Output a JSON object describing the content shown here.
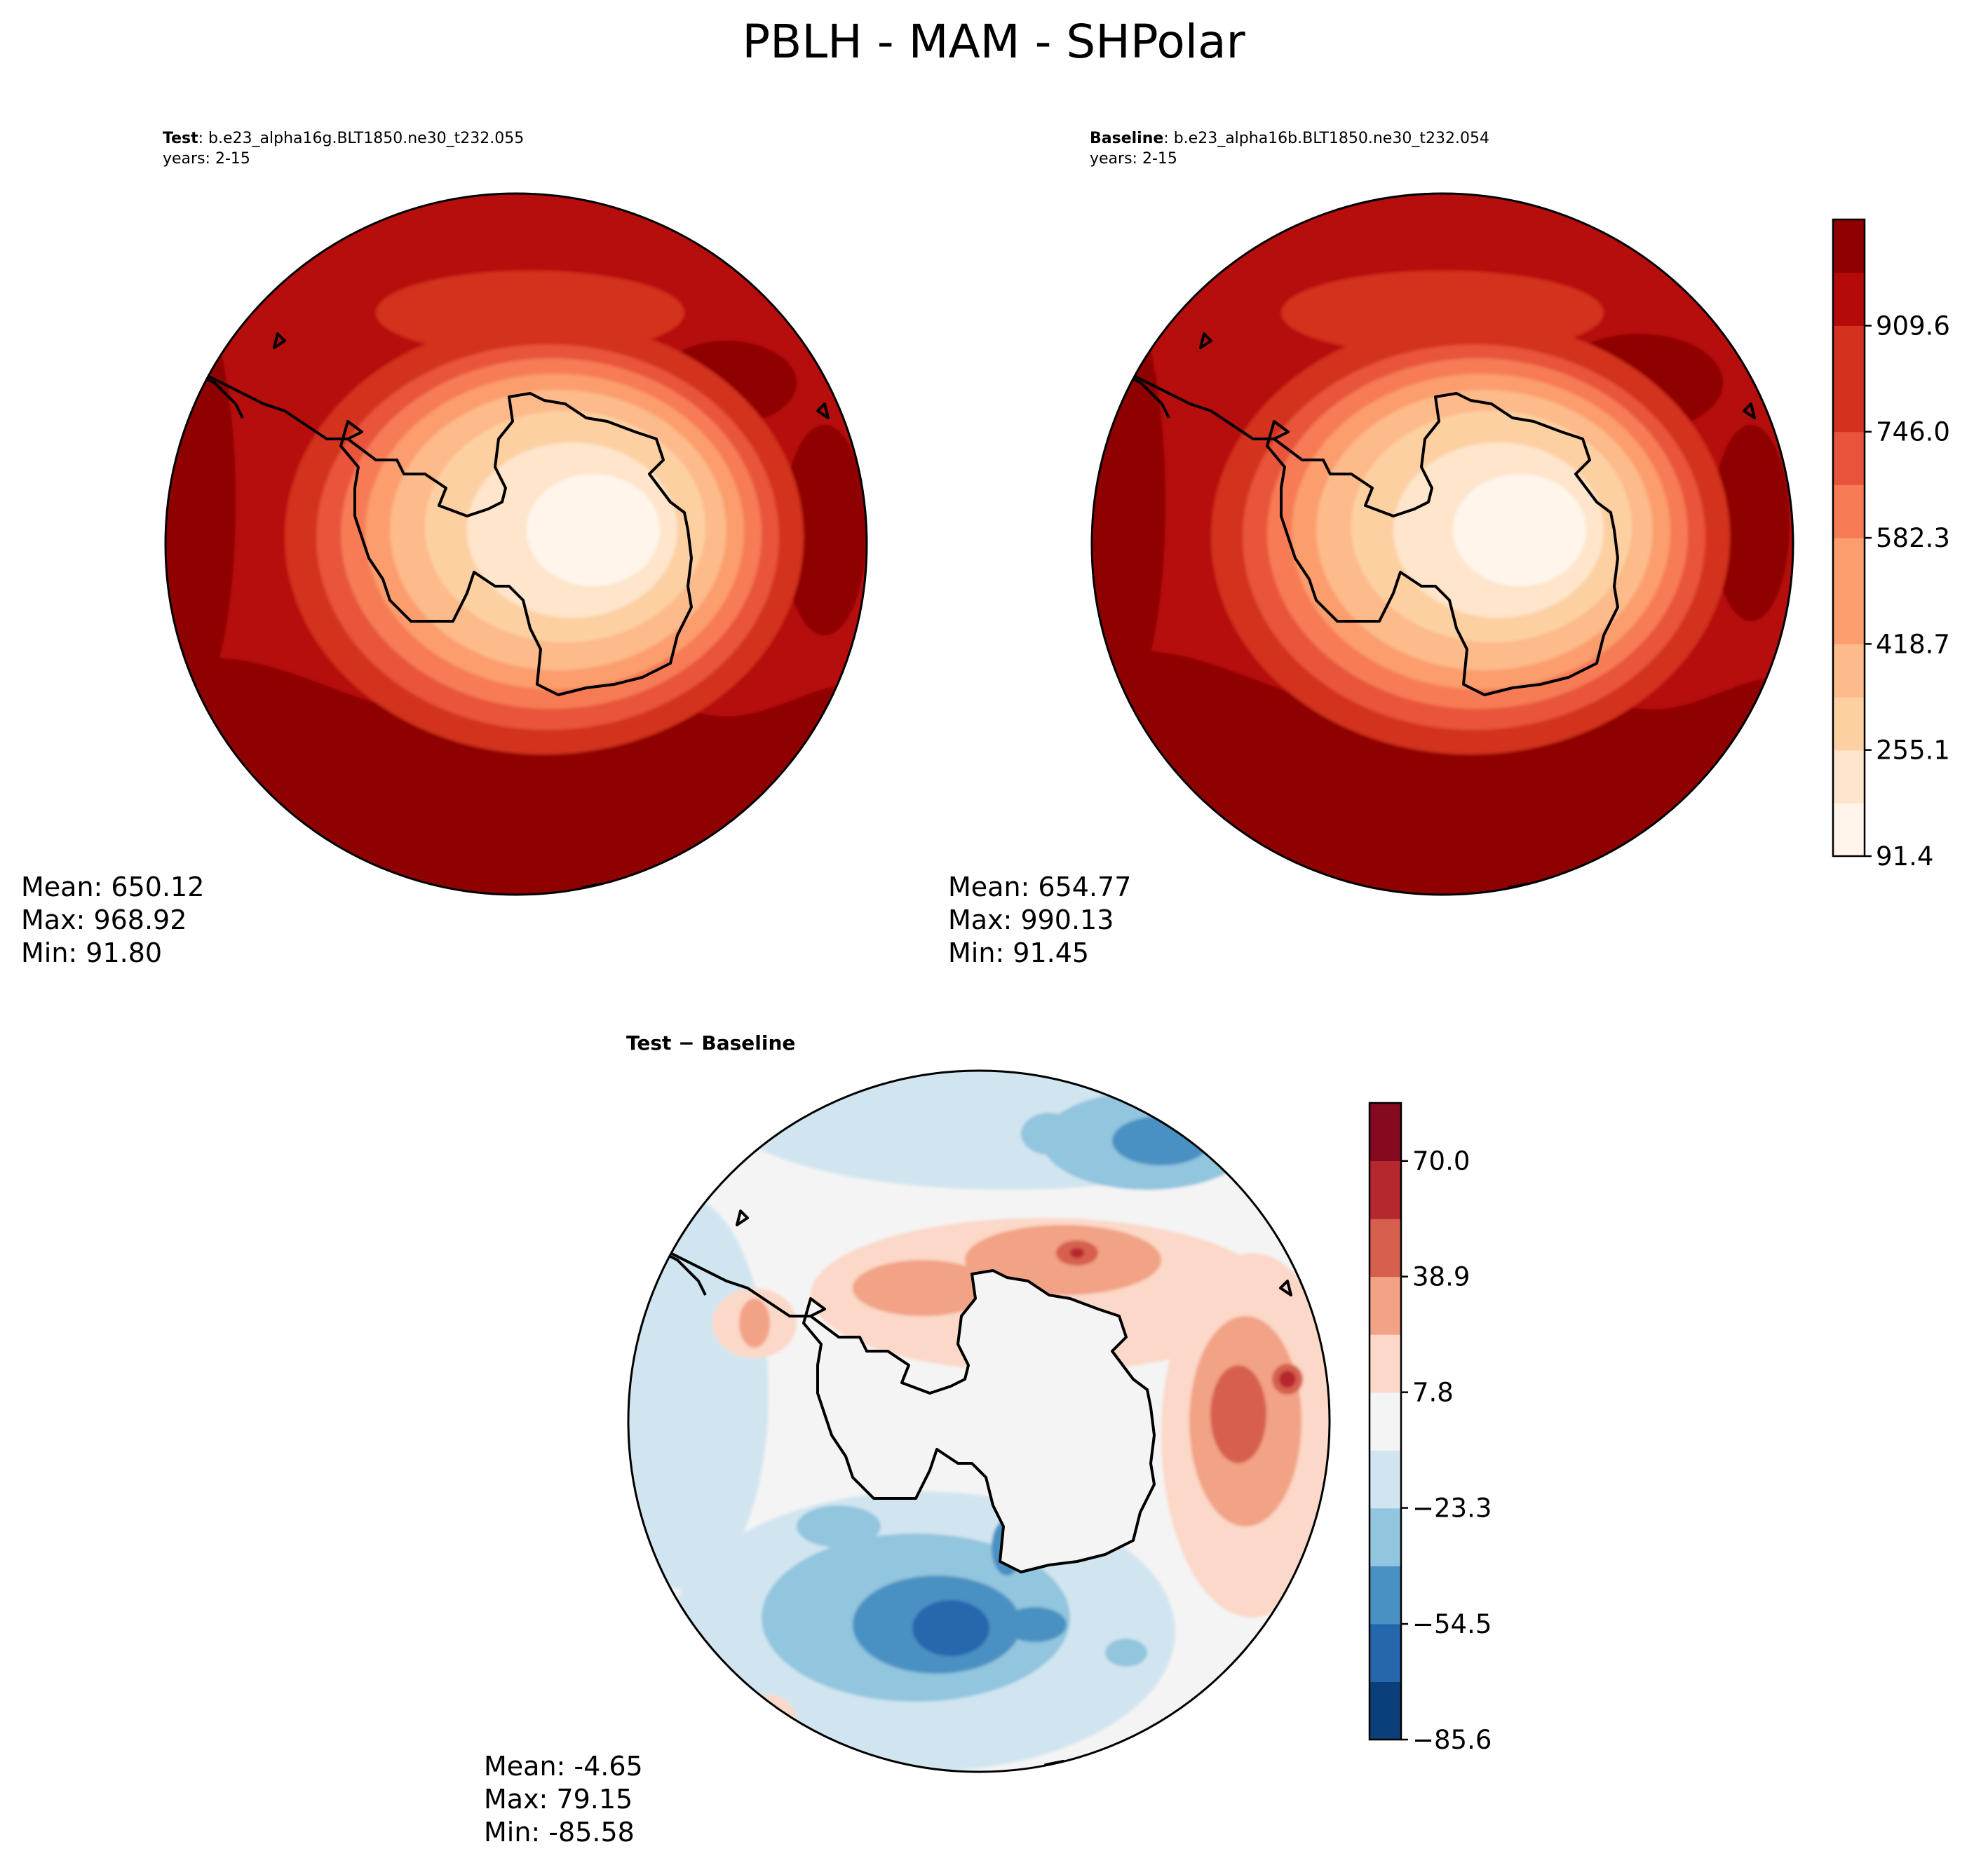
{
  "figure_title": "PBLH - MAM - SHPolar",
  "panels": {
    "test": {
      "label": "Test",
      "case": ": b.e23_alpha16g.BLT1850.ne30_t232.055",
      "years": "years: 2-15",
      "stats": {
        "mean": "Mean: 650.12",
        "max": "Max: 968.92",
        "min": "Min: 91.80"
      }
    },
    "baseline": {
      "label": "Baseline",
      "case": ": b.e23_alpha16b.BLT1850.ne30_t232.054",
      "years": "years: 2-15",
      "stats": {
        "mean": "Mean: 654.77",
        "max": "Max: 990.13",
        "min": "Min: 91.45"
      }
    },
    "diff": {
      "title": "Test − Baseline",
      "stats": {
        "mean": "Mean: -4.65",
        "max": "Max: 79.15",
        "min": "Min: -85.58"
      }
    }
  },
  "colors": {
    "reds": [
      "#fff5eb",
      "#fee5cb",
      "#fdd0a2",
      "#fdba8a",
      "#fc9d6d",
      "#f77b55",
      "#e8543b",
      "#d3321f",
      "#b60a0a",
      "#8f0000"
    ],
    "diverging": [
      "#0b3f7a",
      "#2567ad",
      "#4a91c3",
      "#92c5de",
      "#d1e5f0",
      "#f4f4f4",
      "#fbd8c8",
      "#f2a285",
      "#d6604d",
      "#b5282d",
      "#860a1f"
    ],
    "land_outline": "#000000"
  },
  "chart_data": [
    {
      "type": "heatmap",
      "title": "Test : b.e23_alpha16g.BLT1850.ne30_t232.055",
      "subtitle": "years: 2-15",
      "variable": "PBLH",
      "season": "MAM",
      "region": "SHPolar",
      "projection": "south polar stereographic",
      "levels_range": [
        91.4,
        1073.4
      ],
      "mean": 650.12,
      "max": 968.92,
      "min": 91.8
    },
    {
      "type": "heatmap",
      "title": "Baseline : b.e23_alpha16b.BLT1850.ne30_t232.054",
      "subtitle": "years: 2-15",
      "variable": "PBLH",
      "season": "MAM",
      "region": "SHPolar",
      "projection": "south polar stereographic",
      "levels_range": [
        91.4,
        1073.4
      ],
      "mean": 654.77,
      "max": 990.13,
      "min": 91.45
    },
    {
      "type": "heatmap",
      "title": "Test − Baseline",
      "variable": "PBLH difference",
      "projection": "south polar stereographic",
      "levels_range": [
        -85.6,
        85.6
      ],
      "mean": -4.65,
      "max": 79.15,
      "min": -85.58
    }
  ],
  "colorbars": {
    "main": {
      "tick_values": [
        91.4,
        255.1,
        418.7,
        582.3,
        746.0,
        909.6
      ],
      "tick_labels": [
        "91.4",
        "255.1",
        "418.7",
        "582.3",
        "746.0",
        "909.6"
      ],
      "range": [
        91.4,
        1073.4
      ],
      "n_levels": 12
    },
    "diff": {
      "tick_values": [
        -85.6,
        -54.5,
        -23.3,
        7.8,
        38.9,
        70.0
      ],
      "tick_labels": [
        "−85.6",
        "−54.5",
        "−23.3",
        "7.8",
        "38.9",
        "70.0"
      ],
      "range": [
        -85.6,
        85.6
      ],
      "n_levels": 11
    }
  }
}
